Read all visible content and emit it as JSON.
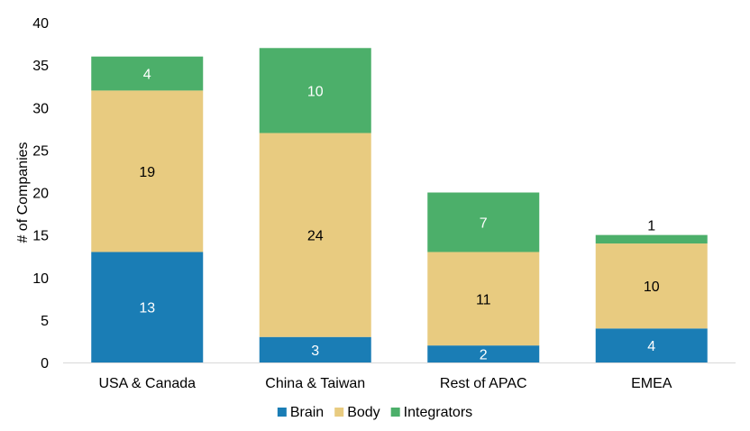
{
  "chart_data": {
    "type": "bar",
    "stacked": true,
    "categories": [
      "USA & Canada",
      "China & Taiwan",
      "Rest of APAC",
      "EMEA"
    ],
    "series": [
      {
        "name": "Brain",
        "values": [
          13,
          3,
          2,
          4
        ],
        "color": "#1a7db5",
        "label_color": "#ffffff"
      },
      {
        "name": "Body",
        "values": [
          19,
          24,
          11,
          10
        ],
        "color": "#e8cb80",
        "label_color": "#000000"
      },
      {
        "name": "Integrators",
        "values": [
          4,
          10,
          7,
          1
        ],
        "color": "#4caf6a",
        "label_color": "#ffffff"
      }
    ],
    "title": "",
    "xlabel": "",
    "ylabel": "# of Companies",
    "ylim": [
      0,
      40
    ],
    "yticks": [
      0,
      5,
      10,
      15,
      20,
      25,
      30,
      35,
      40
    ],
    "grid": false,
    "legend_position": "bottom"
  }
}
